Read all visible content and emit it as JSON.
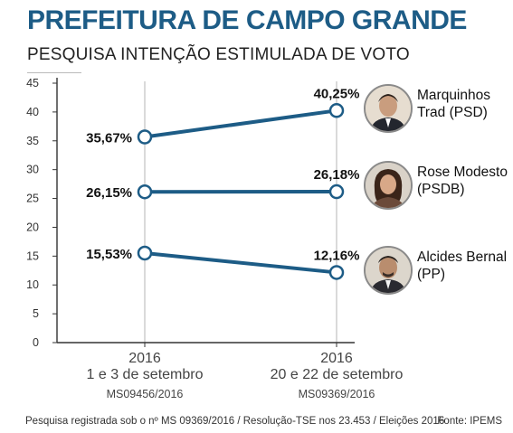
{
  "header": {
    "title": "PREFEITURA DE CAMPO GRANDE",
    "subtitle": "PESQUISA INTENÇÃO ESTIMULADA DE VOTO"
  },
  "chart_data": {
    "type": "line",
    "title": "PREFEITURA DE CAMPO GRANDE",
    "subtitle": "PESQUISA INTENÇÃO ESTIMULADA DE VOTO",
    "xlabel": "",
    "ylabel": "",
    "ylim": [
      0,
      45
    ],
    "yticks": [
      0,
      5,
      10,
      15,
      20,
      25,
      30,
      35,
      40,
      45
    ],
    "grid": false,
    "x": [
      {
        "year": "2016",
        "dates": "1 e 3 de setembro",
        "code": "MS09456/2016"
      },
      {
        "year": "2016",
        "dates": "20 e 22 de setembro",
        "code": "MS09369/2016"
      }
    ],
    "series": [
      {
        "name": "Marquinhos Trad (PSD)",
        "values": [
          35.67,
          40.25
        ],
        "labels": [
          "35,67%",
          "40,25%"
        ]
      },
      {
        "name": "Rose Modesto (PSDB)",
        "values": [
          26.15,
          26.18
        ],
        "labels": [
          "26,15%",
          "26,18%"
        ]
      },
      {
        "name": "Alcides Bernal (PP)",
        "values": [
          15.53,
          12.16
        ],
        "labels": [
          "15,53%",
          "12,16%"
        ]
      }
    ],
    "colors": {
      "line": "#1d5c86",
      "marker_fill": "#ffffff",
      "axis": "#333333",
      "vline": "#b5b5b5"
    }
  },
  "candidates": [
    {
      "line1": "Marquinhos",
      "line2": "Trad (PSD)",
      "icon": "candidate-photo-icon"
    },
    {
      "line1": "Rose Modesto",
      "line2": "(PSDB)",
      "icon": "candidate-photo-icon"
    },
    {
      "line1": "Alcides Bernal",
      "line2": "(PP)",
      "icon": "candidate-photo-icon"
    }
  ],
  "footer": {
    "note": "Pesquisa registrada sob o nº MS 09369/2016 / Resolução-TSE nos 23.453 / Eleições 2016",
    "source": "Fonte: IPEMS"
  }
}
